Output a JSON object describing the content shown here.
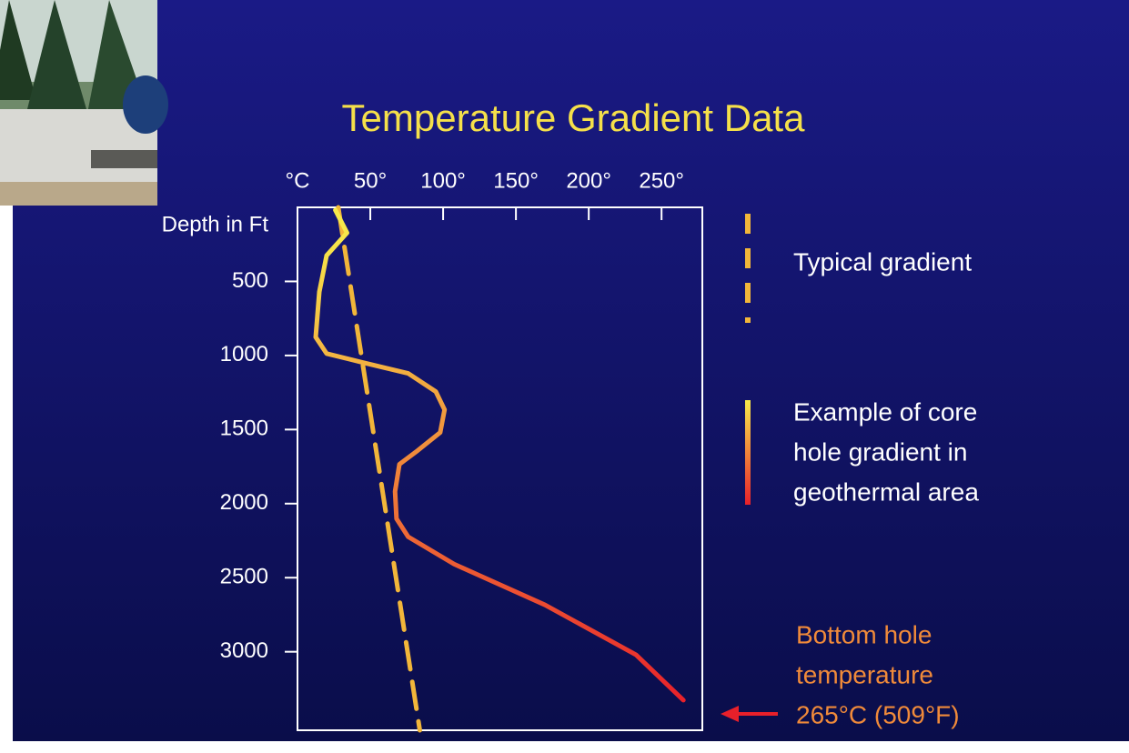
{
  "chart_data": {
    "type": "line",
    "title": "Temperature Gradient Data",
    "x_label": "°C",
    "y_label": "Depth in Ft",
    "xlim": [
      0,
      278
    ],
    "xticks": [
      {
        "value": 50,
        "label": "50°"
      },
      {
        "value": 100,
        "label": "100°"
      },
      {
        "value": 150,
        "label": "150°"
      },
      {
        "value": 200,
        "label": "200°"
      },
      {
        "value": 250,
        "label": "250°"
      }
    ],
    "ylim": [
      0,
      3530
    ],
    "y_inverted": true,
    "yticks": [
      500,
      1000,
      1500,
      2000,
      2500,
      3000
    ],
    "series": [
      {
        "name": "Typical gradient",
        "color": "#f2b63a",
        "dashed": true,
        "x": [
          28,
          84
        ],
        "y": [
          0,
          3530
        ]
      },
      {
        "name": [
          "Example of core",
          "hole gradient in",
          "geothermal area"
        ],
        "color": [
          "#f7e94a",
          "#e8202a"
        ],
        "dashed": false,
        "x": [
          26,
          34,
          20,
          15,
          12.5,
          20,
          45,
          76,
          95,
          101,
          98,
          82.5,
          70,
          67,
          68,
          76,
          107.5,
          170,
          232.5,
          265
        ],
        "y": [
          18,
          172,
          325,
          570,
          876,
          987,
          1048,
          1121,
          1244,
          1366,
          1520,
          1642,
          1734,
          1918,
          2102,
          2224,
          2408,
          2684,
          3021,
          3327
        ]
      }
    ],
    "annotation": {
      "lines": [
        "Bottom hole",
        "temperature",
        "265°C (509°F)"
      ],
      "color": "#f08a3a"
    }
  }
}
